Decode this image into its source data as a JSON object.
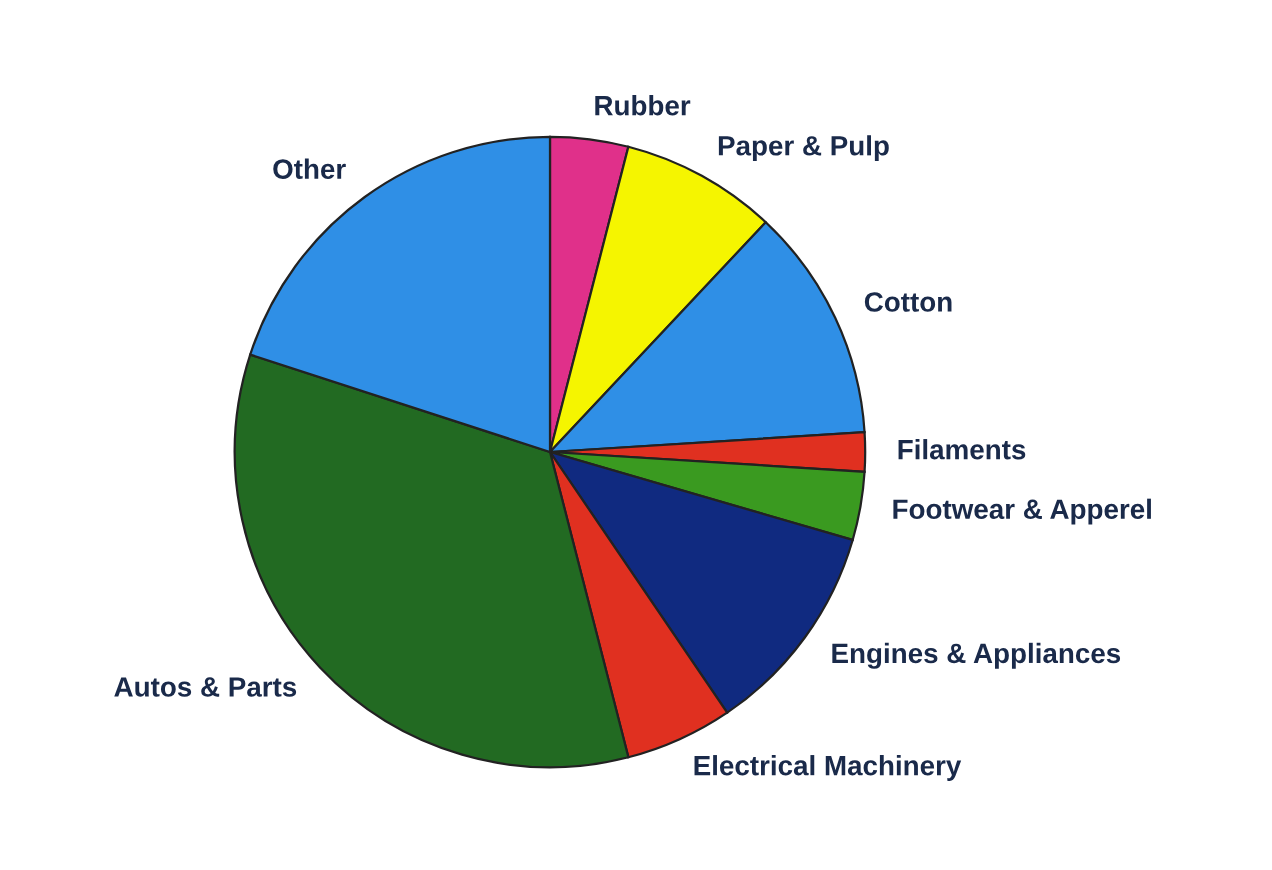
{
  "chart_data": {
    "type": "pie",
    "categories": [
      "Rubber",
      "Paper & Pulp",
      "Cotton",
      "Filaments",
      "Footwear & Apperel",
      "Engines & Appliances",
      "Electrical Machinery",
      "Autos & Parts",
      "Other"
    ],
    "values": [
      4,
      8,
      12,
      2,
      3.5,
      11,
      5.5,
      34,
      20
    ],
    "colors": [
      "#e0308a",
      "#f5f500",
      "#2f8fe6",
      "#e03020",
      "#3a9a20",
      "#102a80",
      "#e03020",
      "#226a22",
      "#2f8fe6"
    ]
  }
}
